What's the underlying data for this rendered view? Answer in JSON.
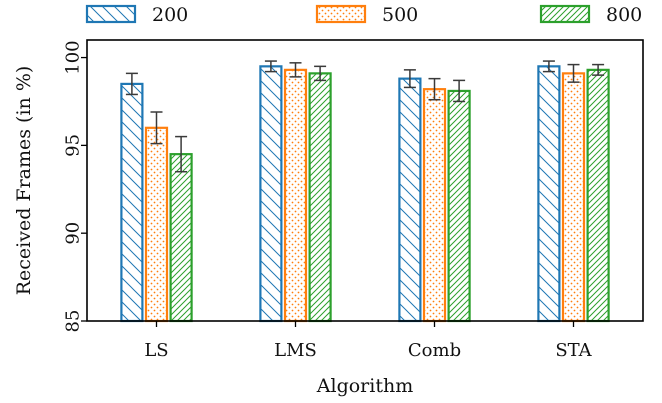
{
  "chart_data": {
    "type": "bar",
    "xlabel": "Algorithm",
    "ylabel": "Received Frames (in %)",
    "ylim": [
      85,
      101
    ],
    "yticks": [
      85,
      90,
      95,
      100
    ],
    "categories": [
      "LS",
      "LMS",
      "Comb",
      "STA"
    ],
    "legend_position": "top",
    "grid": false,
    "error_bars": true,
    "series": [
      {
        "name": "200",
        "color": "#1f77b4",
        "hatch": "backslash",
        "values": [
          98.5,
          99.5,
          98.8,
          99.5
        ],
        "err_low": [
          97.9,
          99.2,
          98.3,
          99.2
        ],
        "err_high": [
          99.1,
          99.8,
          99.3,
          99.8
        ]
      },
      {
        "name": "500",
        "color": "#ff7f0e",
        "hatch": "dots",
        "values": [
          96.0,
          99.3,
          98.2,
          99.1
        ],
        "err_low": [
          95.1,
          98.9,
          97.6,
          98.6
        ],
        "err_high": [
          96.9,
          99.7,
          98.8,
          99.6
        ]
      },
      {
        "name": "800",
        "color": "#2ca02c",
        "hatch": "slash",
        "values": [
          94.5,
          99.1,
          98.1,
          99.3
        ],
        "err_low": [
          93.5,
          98.7,
          97.5,
          99.0
        ],
        "err_high": [
          95.5,
          99.5,
          98.7,
          99.6
        ]
      }
    ]
  }
}
